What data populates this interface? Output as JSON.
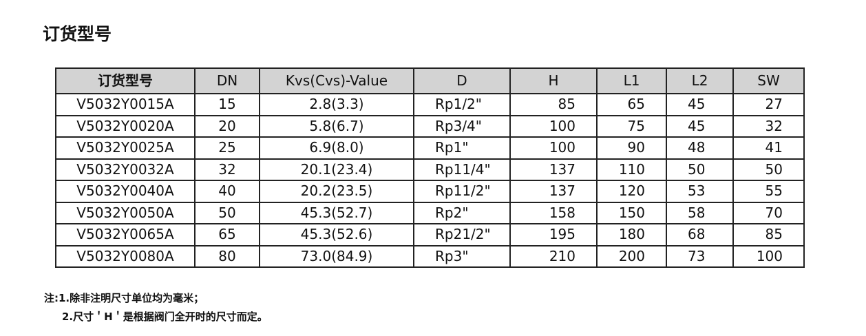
{
  "header": {
    "title": "订货型号"
  },
  "table": {
    "columns": [
      "订货型号",
      "DN",
      "Kvs(Cvs)-Value",
      "D",
      "H",
      "L1",
      "L2",
      "SW"
    ],
    "rows": [
      [
        "V5032Y0015A",
        "15",
        "2.8(3.3)",
        "Rp1/2\"",
        "85",
        "65",
        "45",
        "27"
      ],
      [
        "V5032Y0020A",
        "20",
        "5.8(6.7)",
        "Rp3/4\"",
        "100",
        "75",
        "45",
        "32"
      ],
      [
        "V5032Y0025A",
        "25",
        "6.9(8.0)",
        "Rp1\"",
        "100",
        "90",
        "48",
        "41"
      ],
      [
        "V5032Y0032A",
        "32",
        "20.1(23.4)",
        "Rp11/4\"",
        "137",
        "110",
        "50",
        "50"
      ],
      [
        "V5032Y0040A",
        "40",
        "20.2(23.5)",
        "Rp11/2\"",
        "137",
        "120",
        "53",
        "55"
      ],
      [
        "V5032Y0050A",
        "50",
        "45.3(52.7)",
        "Rp2\"",
        "158",
        "150",
        "58",
        "70"
      ],
      [
        "V5032Y0065A",
        "65",
        "45.3(52.6)",
        "Rp21/2\"",
        "195",
        "180",
        "68",
        "85"
      ],
      [
        "V5032Y0080A",
        "80",
        "73.0(84.9)",
        "Rp3\"",
        "210",
        "200",
        "73",
        "100"
      ]
    ]
  },
  "notes": [
    "注:1.除非注明尺寸单位均为毫米；",
    "2.尺寸＇H＇是根据阀门全开时的尺寸而定。"
  ]
}
